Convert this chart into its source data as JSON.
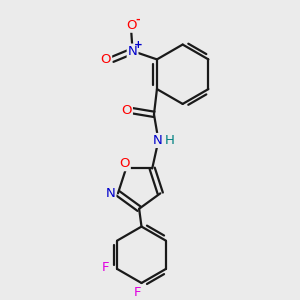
{
  "bg_color": "#ebebeb",
  "bond_color": "#1a1a1a",
  "bond_width": 1.6,
  "atom_colors": {
    "O": "#ff0000",
    "N": "#0000cc",
    "F": "#e000e0",
    "H": "#008080"
  },
  "font_size": 9.5
}
